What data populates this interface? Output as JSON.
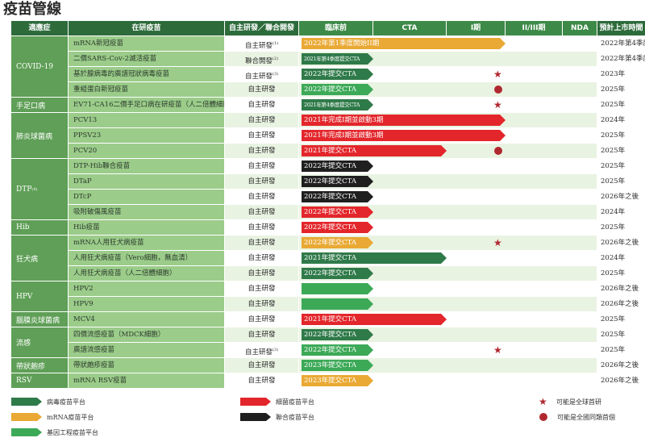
{
  "title": "疫苗管線",
  "colors": {
    "header_dark": "#2d6b3b",
    "header_light": "#3d8a48",
    "indication_bg": "#5f9f57",
    "vaccine_bg": "#9bcc8a",
    "row_alt_bg": "#e9f3e2",
    "green_dark": "#2f7a49",
    "yellow": "#e9a934",
    "red": "#e3262b",
    "black": "#1f1f1f",
    "green_bright": "#3ca957",
    "mark": "#b0282f"
  },
  "headers": {
    "indication": "適應症",
    "vaccine": "在研疫苗",
    "development": "自主研發／聯合開發",
    "preclinical": "臨床前",
    "cta": "CTA",
    "phase1": "I期",
    "phase2_3": "II/III期",
    "nda": "NDA",
    "launch": "預計上市時間"
  },
  "indications": [
    {
      "label": "COVID-19",
      "sup": ""
    },
    {
      "label": "手足口病",
      "sup": ""
    },
    {
      "label": "肺炎球菌病",
      "sup": ""
    },
    {
      "label": "DTP",
      "sup": "(4)"
    },
    {
      "label": "Hib",
      "sup": ""
    },
    {
      "label": "狂犬病",
      "sup": ""
    },
    {
      "label": "HPV",
      "sup": ""
    },
    {
      "label": "腦膜炎球菌病",
      "sup": ""
    },
    {
      "label": "流感",
      "sup": ""
    },
    {
      "label": "帶狀皰疹",
      "sup": ""
    },
    {
      "label": "RSV",
      "sup": ""
    }
  ],
  "rows": [
    {
      "vaccine": "mRNA新冠疫苗",
      "dev": "自主研發",
      "dev_sup": "(1)",
      "bar_label": "2022年第1季度開始II期",
      "bar_color": "yellow",
      "bar_progress": 3,
      "mark": "",
      "launch": "2022年第4季度"
    },
    {
      "vaccine": "二價SARS-Cov-2滅活疫苗",
      "dev": "聯合開發",
      "dev_sup": "(2)",
      "bar_label": "2021年第4季度提交CTA",
      "bar_color": "green_dark",
      "bar_progress": 1,
      "mark": "",
      "launch": "2022年第4季度"
    },
    {
      "vaccine": "基於腺病毒的廣譜冠狀病毒疫苗",
      "dev": "自主研發",
      "dev_sup": "(3)",
      "bar_label": "2022年提交CTA",
      "bar_color": "green_dark",
      "bar_progress": 1,
      "mark": "star",
      "launch": "2023年"
    },
    {
      "vaccine": "重組蛋白新冠疫苗",
      "dev": "自主研發",
      "dev_sup": "",
      "bar_label": "2022年提交CTA",
      "bar_color": "green_bright",
      "bar_progress": 1,
      "mark": "dot",
      "launch": "2025年"
    },
    {
      "vaccine": "EV71-CA16二價手足口病在研疫苗（人二倍體細胞）",
      "dev": "自主研發",
      "dev_sup": "",
      "bar_label": "2021年第4季度提交CTA",
      "bar_color": "green_dark",
      "bar_progress": 1,
      "mark": "star",
      "launch": "2025年"
    },
    {
      "vaccine": "PCV13",
      "dev": "自主研發",
      "dev_sup": "",
      "bar_label": "2021年完成I期並啟動3期",
      "bar_color": "red",
      "bar_progress": 3,
      "mark": "",
      "launch": "2024年"
    },
    {
      "vaccine": "PPSV23",
      "dev": "自主研發",
      "dev_sup": "",
      "bar_label": "2021年完成I期並啟動3期",
      "bar_color": "red",
      "bar_progress": 3,
      "mark": "",
      "launch": "2025年"
    },
    {
      "vaccine": "PCV20",
      "dev": "自主研發",
      "dev_sup": "",
      "bar_label": "2021年提交CTA",
      "bar_color": "red",
      "bar_progress": 2,
      "mark": "dot",
      "launch": "2025年"
    },
    {
      "vaccine": "DTP-Hib聯合疫苗",
      "dev": "自主研發",
      "dev_sup": "",
      "bar_label": "2022年提交CTA",
      "bar_color": "black",
      "bar_progress": 1,
      "mark": "",
      "launch": "2025年"
    },
    {
      "vaccine": "DTaP",
      "dev": "自主研發",
      "dev_sup": "",
      "bar_label": "2022年提交CTA",
      "bar_color": "black",
      "bar_progress": 1,
      "mark": "",
      "launch": "2025年"
    },
    {
      "vaccine": "DTcP",
      "dev": "自主研發",
      "dev_sup": "",
      "bar_label": "2022年提交CTA",
      "bar_color": "black",
      "bar_progress": 1,
      "mark": "",
      "launch": "2026年之後"
    },
    {
      "vaccine": "吸附破傷風疫苗",
      "dev": "自主研發",
      "dev_sup": "",
      "bar_label": "2022年提交CTA",
      "bar_color": "red",
      "bar_progress": 1,
      "mark": "",
      "launch": "2024年"
    },
    {
      "vaccine": "Hib疫苗",
      "dev": "自主研發",
      "dev_sup": "",
      "bar_label": "2022年提交CTA",
      "bar_color": "red",
      "bar_progress": 1,
      "mark": "",
      "launch": "2025年"
    },
    {
      "vaccine": "mRNA人用狂犬病疫苗",
      "dev": "自主研發",
      "dev_sup": "",
      "bar_label": "2022年提交CTA",
      "bar_color": "yellow",
      "bar_progress": 1,
      "mark": "star",
      "launch": "2026年之後"
    },
    {
      "vaccine": "人用狂犬病疫苗（Vero細胞，無血清）",
      "dev": "自主研發",
      "dev_sup": "",
      "bar_label": "2021年提交CTA",
      "bar_color": "green_dark",
      "bar_progress": 2,
      "mark": "",
      "launch": "2024年"
    },
    {
      "vaccine": "人用狂犬病疫苗（人二倍體細胞）",
      "dev": "自主研發",
      "dev_sup": "",
      "bar_label": "2022年提交CTA",
      "bar_color": "green_dark",
      "bar_progress": 1,
      "mark": "",
      "launch": "2025年"
    },
    {
      "vaccine": "HPV2",
      "dev": "自主研發",
      "dev_sup": "",
      "bar_label": "",
      "bar_color": "green_bright",
      "bar_progress": 1,
      "mark": "",
      "launch": "2026年之後"
    },
    {
      "vaccine": "HPV9",
      "dev": "自主研發",
      "dev_sup": "",
      "bar_label": "",
      "bar_color": "green_bright",
      "bar_progress": 1,
      "mark": "",
      "launch": "2026年之後"
    },
    {
      "vaccine": "MCV4",
      "dev": "自主研發",
      "dev_sup": "",
      "bar_label": "2021年提交CTA",
      "bar_color": "red",
      "bar_progress": 2,
      "mark": "",
      "launch": "2025年"
    },
    {
      "vaccine": "四價流感疫苗（MDCK細胞）",
      "dev": "自主研發",
      "dev_sup": "",
      "bar_label": "2022年提交CTA",
      "bar_color": "green_dark",
      "bar_progress": 1,
      "mark": "",
      "launch": "2025年"
    },
    {
      "vaccine": "廣譜流感疫苗",
      "dev": "自主研發",
      "dev_sup": "(3)",
      "bar_label": "2022年提交CTA",
      "bar_color": "green_bright",
      "bar_progress": 1,
      "mark": "star",
      "launch": "2025年"
    },
    {
      "vaccine": "帶狀皰疹疫苗",
      "dev": "自主研發",
      "dev_sup": "",
      "bar_label": "2023年提交CTA",
      "bar_color": "green_bright",
      "bar_progress": 1,
      "mark": "",
      "launch": "2026年之後"
    },
    {
      "vaccine": "mRNA RSV疫苗",
      "dev": "自主研發",
      "dev_sup": "",
      "bar_label": "2023年提交CTA",
      "bar_color": "yellow",
      "bar_progress": 1,
      "mark": "",
      "launch": "2026年之後"
    }
  ],
  "legend": {
    "items": [
      {
        "label": "病毒疫苗平台",
        "color": "green_dark"
      },
      {
        "label": "mRNA疫苗平台",
        "color": "yellow"
      },
      {
        "label": "基因工程疫苗平台",
        "color": "green_bright"
      },
      {
        "label": "細菌疫苗平台",
        "color": "red"
      },
      {
        "label": "聯合疫苗平台",
        "color": "black"
      }
    ],
    "marks": [
      {
        "label": "可能是全球首研",
        "mark": "star"
      },
      {
        "label": "可能是全國同類首個",
        "mark": "dot"
      }
    ]
  }
}
